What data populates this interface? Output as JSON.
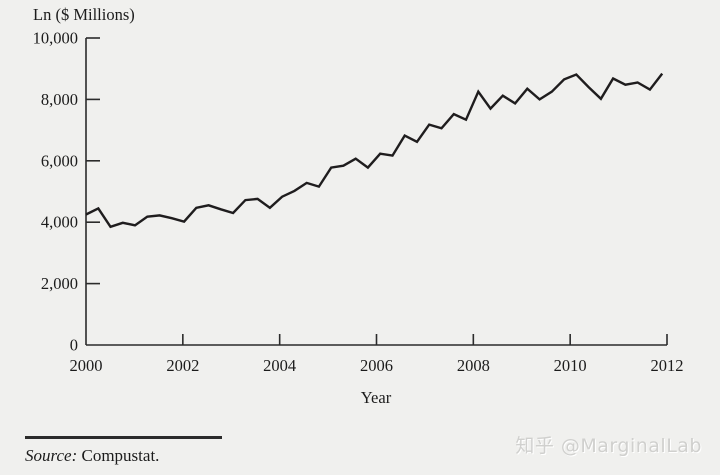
{
  "page": {
    "background": "#f0f0ee"
  },
  "chart": {
    "y_axis_title": "Ln ($ Millions)",
    "x_axis_title": "Year",
    "y_tick_labels": [
      "0",
      "2,000",
      "4,000",
      "6,000",
      "8,000",
      "10,000"
    ],
    "x_tick_labels": [
      "2000",
      "2002",
      "2004",
      "2006",
      "2008",
      "2010",
      "2012"
    ]
  },
  "chart_data": {
    "type": "line",
    "title": "",
    "ylabel": "Ln ($ Millions)",
    "xlabel": "Year",
    "xlim": [
      2000,
      2012
    ],
    "ylim": [
      0,
      10000
    ],
    "x_ticks": [
      2000,
      2002,
      2004,
      2006,
      2008,
      2010,
      2012
    ],
    "y_ticks": [
      0,
      2000,
      4000,
      6000,
      8000,
      10000
    ],
    "grid": false,
    "legend": "none",
    "axis_color": "#2b2b2b",
    "tick_style": "inward",
    "series": [
      {
        "name": "Ln ($ Millions)",
        "frequency": "quarterly",
        "start": "2000Q1",
        "end": "2011Q4",
        "color": "#1f1d1e",
        "values": [
          4250,
          4450,
          3850,
          3980,
          3900,
          4180,
          4220,
          4130,
          4020,
          4470,
          4550,
          4420,
          4300,
          4720,
          4760,
          4470,
          4830,
          5020,
          5280,
          5160,
          5780,
          5840,
          6070,
          5780,
          6230,
          6170,
          6820,
          6620,
          7180,
          7060,
          7520,
          7340,
          8250,
          7700,
          8120,
          7870,
          8350,
          8000,
          8250,
          8650,
          8810,
          8400,
          8020,
          8680,
          8480,
          8550,
          8320,
          8840
        ]
      }
    ]
  },
  "footer": {
    "source_label": "Source:",
    "source_value": "Compustat."
  },
  "watermark": {
    "text": "知乎 @MarginalLab"
  }
}
